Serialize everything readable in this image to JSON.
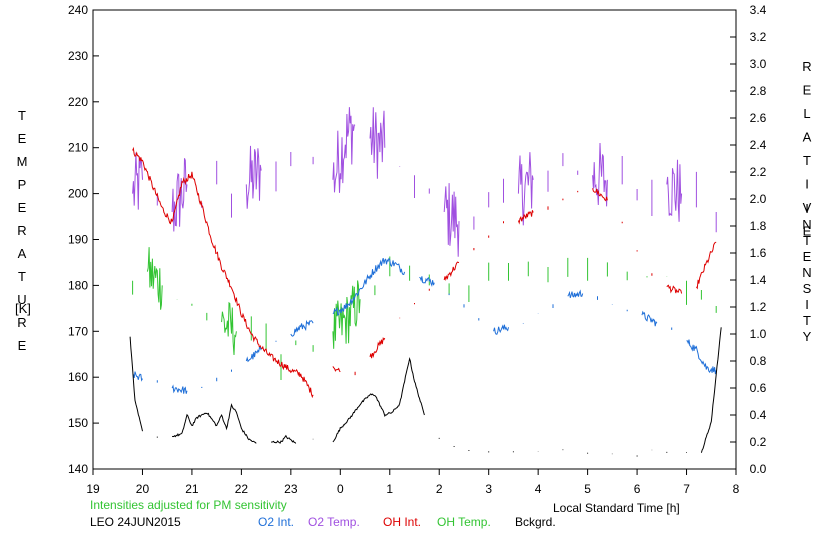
{
  "chart_data": {
    "type": "line",
    "left_axis": {
      "label_letters": [
        "T",
        "E",
        "M",
        "P",
        "E",
        "R",
        "A",
        "T",
        "U",
        "R",
        "E"
      ],
      "unit": "[K]",
      "range": [
        140,
        240
      ],
      "ticks": [
        "140",
        "150",
        "160",
        "170",
        "180",
        "190",
        "200",
        "210",
        "220",
        "230",
        "240"
      ]
    },
    "right_axis": {
      "label1_letters": [
        "R",
        "E",
        "L",
        "A",
        "T",
        "I",
        "V",
        "E"
      ],
      "label2_letters": [
        "I",
        "N",
        "T",
        "E",
        "N",
        "S",
        "I",
        "T",
        "Y"
      ],
      "range": [
        0.0,
        3.4
      ],
      "ticks": [
        "0.0",
        "0.2",
        "0.4",
        "0.6",
        "0.8",
        "1.0",
        "1.2",
        "1.4",
        "1.6",
        "1.8",
        "2.0",
        "2.2",
        "2.4",
        "2.6",
        "2.8",
        "3.0",
        "3.2",
        "3.4"
      ]
    },
    "x_axis": {
      "label": "Local Standard Time [h]",
      "range": [
        19,
        32
      ],
      "ticks": [
        "19",
        "20",
        "21",
        "22",
        "23",
        "0",
        "1",
        "2",
        "3",
        "4",
        "5",
        "6",
        "7",
        "8"
      ]
    },
    "note": "Intensities adjusted for PM sensitivity",
    "station_date": "LEO 24JUN2015",
    "legend": [
      "O2 Int.",
      "O2 Temp.",
      "OH Int.",
      "OH Temp.",
      "Bckgrd."
    ],
    "colors": {
      "o2_int": "#1f6fd8",
      "o2_temp": "#a050e0",
      "oh_int": "#dd0000",
      "oh_temp": "#33c433",
      "bckgrd": "#000000",
      "note": "#33c433"
    },
    "segments": [
      [
        19.8,
        23.45
      ],
      [
        23.85,
        31.6
      ]
    ],
    "series": [
      {
        "name": "O2 Temp.",
        "axis": "left",
        "color_key": "o2_temp",
        "noise": 8,
        "points": [
          [
            19.8,
            200
          ],
          [
            20.0,
            203
          ],
          [
            20.3,
            200
          ],
          [
            20.6,
            196
          ],
          [
            20.9,
            202
          ],
          [
            21.2,
            198
          ],
          [
            21.5,
            202
          ],
          [
            21.8,
            200
          ],
          [
            22.1,
            202
          ],
          [
            22.4,
            205
          ],
          [
            22.7,
            207
          ],
          [
            23.0,
            206
          ],
          [
            23.45,
            208
          ],
          [
            23.85,
            203
          ],
          [
            24.1,
            212
          ],
          [
            24.3,
            215
          ],
          [
            24.6,
            212
          ],
          [
            24.9,
            210
          ],
          [
            25.2,
            206
          ],
          [
            25.5,
            204
          ],
          [
            25.8,
            200
          ],
          [
            26.1,
            196
          ],
          [
            26.4,
            194
          ],
          [
            26.7,
            195
          ],
          [
            27.0,
            197
          ],
          [
            27.3,
            198
          ],
          [
            27.6,
            200
          ],
          [
            27.9,
            203
          ],
          [
            28.2,
            205
          ],
          [
            28.5,
            206
          ],
          [
            28.8,
            205
          ],
          [
            29.1,
            204
          ],
          [
            29.4,
            203
          ],
          [
            29.7,
            202
          ],
          [
            30.0,
            201
          ],
          [
            30.3,
            203
          ],
          [
            30.6,
            202
          ],
          [
            30.9,
            200
          ],
          [
            31.2,
            197
          ],
          [
            31.6,
            196
          ]
        ]
      },
      {
        "name": "OH Temp.",
        "axis": "left",
        "color_key": "oh_temp",
        "noise": 6,
        "points": [
          [
            19.8,
            181
          ],
          [
            20.1,
            183
          ],
          [
            20.4,
            180
          ],
          [
            20.7,
            177
          ],
          [
            21.0,
            176
          ],
          [
            21.3,
            174
          ],
          [
            21.6,
            172
          ],
          [
            21.9,
            170
          ],
          [
            22.2,
            168
          ],
          [
            22.5,
            166
          ],
          [
            22.8,
            165
          ],
          [
            23.1,
            168
          ],
          [
            23.45,
            167
          ],
          [
            23.85,
            170
          ],
          [
            24.1,
            172
          ],
          [
            24.4,
            177
          ],
          [
            24.7,
            180
          ],
          [
            25.0,
            182
          ],
          [
            25.4,
            181
          ],
          [
            25.8,
            180
          ],
          [
            26.2,
            178
          ],
          [
            26.6,
            180
          ],
          [
            27.0,
            181
          ],
          [
            27.4,
            181
          ],
          [
            27.8,
            182
          ],
          [
            28.2,
            184
          ],
          [
            28.6,
            186
          ],
          [
            29.0,
            186
          ],
          [
            29.4,
            185
          ],
          [
            29.8,
            183
          ],
          [
            30.2,
            182
          ],
          [
            30.6,
            182
          ],
          [
            31.0,
            181
          ],
          [
            31.3,
            179
          ],
          [
            31.6,
            174
          ]
        ]
      },
      {
        "name": "OH Int.",
        "axis": "right",
        "color_key": "oh_int",
        "noise": 0.025,
        "points": [
          [
            19.8,
            2.36
          ],
          [
            20.0,
            2.28
          ],
          [
            20.2,
            2.1
          ],
          [
            20.4,
            1.93
          ],
          [
            20.6,
            1.82
          ],
          [
            20.8,
            2.12
          ],
          [
            21.0,
            2.18
          ],
          [
            21.2,
            1.95
          ],
          [
            21.4,
            1.7
          ],
          [
            21.6,
            1.5
          ],
          [
            21.8,
            1.35
          ],
          [
            22.0,
            1.15
          ],
          [
            22.2,
            1.0
          ],
          [
            22.4,
            0.9
          ],
          [
            22.6,
            0.83
          ],
          [
            22.8,
            0.78
          ],
          [
            23.0,
            0.73
          ],
          [
            23.2,
            0.7
          ],
          [
            23.45,
            0.55
          ],
          [
            23.85,
            0.76
          ],
          [
            24.0,
            0.72
          ],
          [
            24.3,
            0.72
          ],
          [
            24.6,
            0.83
          ],
          [
            24.9,
            0.97
          ],
          [
            25.2,
            1.12
          ],
          [
            25.5,
            1.23
          ],
          [
            25.8,
            1.32
          ],
          [
            26.1,
            1.4
          ],
          [
            26.4,
            1.53
          ],
          [
            26.7,
            1.62
          ],
          [
            27.0,
            1.73
          ],
          [
            27.3,
            1.82
          ],
          [
            27.6,
            1.84
          ],
          [
            27.9,
            1.9
          ],
          [
            28.2,
            1.92
          ],
          [
            28.5,
            1.99
          ],
          [
            28.8,
            2.06
          ],
          [
            29.1,
            2.08
          ],
          [
            29.4,
            1.99
          ],
          [
            29.7,
            1.82
          ],
          [
            30.0,
            1.62
          ],
          [
            30.3,
            1.45
          ],
          [
            30.6,
            1.35
          ],
          [
            30.9,
            1.3
          ],
          [
            31.2,
            1.35
          ],
          [
            31.4,
            1.52
          ],
          [
            31.6,
            1.68
          ]
        ]
      },
      {
        "name": "O2 Int.",
        "axis": "right",
        "color_key": "o2_int",
        "noise": 0.03,
        "points": [
          [
            19.8,
            0.7
          ],
          [
            20.0,
            0.67
          ],
          [
            20.3,
            0.64
          ],
          [
            20.6,
            0.6
          ],
          [
            20.9,
            0.58
          ],
          [
            21.2,
            0.6
          ],
          [
            21.5,
            0.65
          ],
          [
            21.8,
            0.72
          ],
          [
            22.1,
            0.8
          ],
          [
            22.4,
            0.88
          ],
          [
            22.7,
            0.95
          ],
          [
            23.0,
            1.0
          ],
          [
            23.2,
            1.05
          ],
          [
            23.45,
            1.08
          ],
          [
            23.85,
            1.15
          ],
          [
            24.1,
            1.2
          ],
          [
            24.3,
            1.28
          ],
          [
            24.5,
            1.38
          ],
          [
            24.7,
            1.48
          ],
          [
            24.9,
            1.55
          ],
          [
            25.1,
            1.52
          ],
          [
            25.3,
            1.46
          ],
          [
            25.6,
            1.42
          ],
          [
            25.9,
            1.38
          ],
          [
            26.2,
            1.3
          ],
          [
            26.5,
            1.22
          ],
          [
            26.8,
            1.1
          ],
          [
            27.1,
            1.02
          ],
          [
            27.4,
            1.05
          ],
          [
            27.7,
            1.08
          ],
          [
            28.0,
            1.15
          ],
          [
            28.3,
            1.22
          ],
          [
            28.6,
            1.28
          ],
          [
            28.9,
            1.3
          ],
          [
            29.2,
            1.28
          ],
          [
            29.5,
            1.22
          ],
          [
            29.8,
            1.18
          ],
          [
            30.1,
            1.14
          ],
          [
            30.4,
            1.08
          ],
          [
            30.7,
            1.03
          ],
          [
            31.0,
            0.95
          ],
          [
            31.2,
            0.88
          ],
          [
            31.4,
            0.75
          ],
          [
            31.6,
            0.73
          ]
        ]
      },
      {
        "name": "Bckgrd.",
        "axis": "right",
        "color_key": "bckgrd",
        "noise": 0.008,
        "points": [
          [
            19.75,
            0.98
          ],
          [
            19.85,
            0.5
          ],
          [
            20.0,
            0.28
          ],
          [
            20.3,
            0.24
          ],
          [
            20.6,
            0.24
          ],
          [
            20.8,
            0.26
          ],
          [
            20.9,
            0.4
          ],
          [
            21.0,
            0.32
          ],
          [
            21.1,
            0.38
          ],
          [
            21.3,
            0.42
          ],
          [
            21.5,
            0.32
          ],
          [
            21.6,
            0.4
          ],
          [
            21.7,
            0.3
          ],
          [
            21.8,
            0.47
          ],
          [
            21.9,
            0.42
          ],
          [
            22.0,
            0.3
          ],
          [
            22.15,
            0.22
          ],
          [
            22.3,
            0.19
          ],
          [
            22.6,
            0.2
          ],
          [
            22.8,
            0.2
          ],
          [
            22.9,
            0.24
          ],
          [
            23.1,
            0.19
          ],
          [
            23.45,
            0.22
          ],
          [
            23.85,
            0.2
          ],
          [
            24.0,
            0.3
          ],
          [
            24.2,
            0.38
          ],
          [
            24.4,
            0.48
          ],
          [
            24.6,
            0.55
          ],
          [
            24.7,
            0.55
          ],
          [
            24.9,
            0.4
          ],
          [
            25.05,
            0.42
          ],
          [
            25.2,
            0.48
          ],
          [
            25.3,
            0.65
          ],
          [
            25.4,
            0.82
          ],
          [
            25.5,
            0.65
          ],
          [
            25.7,
            0.4
          ],
          [
            26.0,
            0.23
          ],
          [
            26.3,
            0.17
          ],
          [
            26.6,
            0.14
          ],
          [
            27.0,
            0.13
          ],
          [
            27.5,
            0.13
          ],
          [
            28.0,
            0.13
          ],
          [
            28.5,
            0.14
          ],
          [
            29.0,
            0.12
          ],
          [
            29.5,
            0.11
          ],
          [
            30.0,
            0.1
          ],
          [
            30.3,
            0.14
          ],
          [
            30.6,
            0.12
          ],
          [
            31.0,
            0.12
          ],
          [
            31.3,
            0.12
          ],
          [
            31.5,
            0.35
          ],
          [
            31.7,
            1.05
          ]
        ]
      }
    ]
  }
}
